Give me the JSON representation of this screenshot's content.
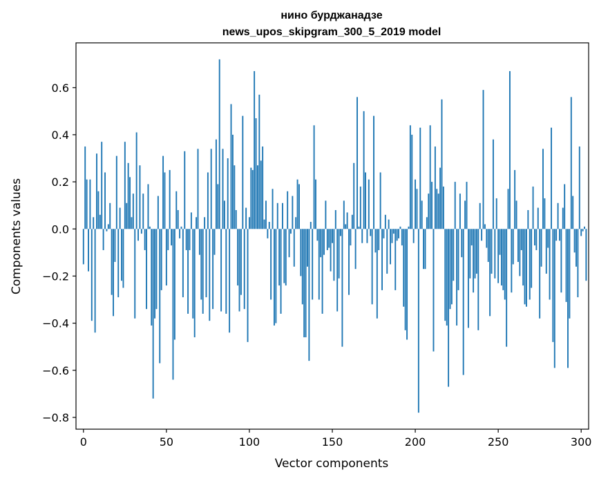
{
  "chart_data": {
    "type": "bar",
    "title": "нино бурджанадзе",
    "subtitle": "news_upos_skipgram_300_5_2019 model",
    "xlabel": "Vector components",
    "ylabel": "Components values",
    "xlim": [
      -4.5,
      304.5
    ],
    "ylim": [
      -0.85,
      0.79
    ],
    "xticks": [
      0,
      50,
      100,
      150,
      200,
      250,
      300
    ],
    "xtick_labels": [
      "0",
      "50",
      "100",
      "150",
      "200",
      "250",
      "300"
    ],
    "yticks": [
      0.6,
      0.4,
      0.2,
      0.0,
      -0.2,
      -0.4,
      -0.6,
      -0.8
    ],
    "ytick_labels": [
      "0.6",
      "0.4",
      "0.2",
      "0.0",
      "−0.2",
      "−0.4",
      "−0.6",
      "−0.8"
    ],
    "color": "#1f77b4",
    "grid": false,
    "values": [
      -0.15,
      0.35,
      0.21,
      -0.18,
      0.21,
      -0.39,
      0.05,
      -0.44,
      0.32,
      0.16,
      0.06,
      0.37,
      -0.09,
      0.24,
      -0.01,
      0.02,
      0.11,
      -0.28,
      -0.37,
      -0.14,
      0.31,
      -0.29,
      0.09,
      -0.22,
      -0.25,
      0.37,
      0.11,
      0.28,
      0.22,
      0.05,
      0.15,
      -0.38,
      0.41,
      -0.05,
      0.27,
      -0.02,
      0.15,
      -0.09,
      -0.34,
      0.19,
      0.01,
      -0.41,
      -0.72,
      -0.38,
      -0.34,
      0.14,
      -0.57,
      -0.26,
      0.31,
      0.24,
      -0.24,
      -0.09,
      0.25,
      -0.07,
      -0.64,
      -0.47,
      0.16,
      0.08,
      -0.04,
      0.01,
      -0.29,
      0.33,
      -0.09,
      -0.36,
      -0.09,
      0.07,
      -0.38,
      -0.46,
      0.05,
      0.34,
      -0.11,
      -0.3,
      -0.36,
      0.05,
      -0.29,
      0.24,
      -0.39,
      0.34,
      -0.34,
      -0.11,
      0.38,
      0.19,
      0.72,
      -0.35,
      0.34,
      0.12,
      -0.36,
      0.3,
      -0.44,
      0.53,
      0.4,
      0.27,
      0.08,
      -0.24,
      -0.35,
      -0.28,
      0.48,
      -0.34,
      0.09,
      -0.48,
      0.05,
      0.26,
      0.25,
      0.67,
      0.47,
      0.27,
      0.57,
      0.29,
      0.35,
      0.04,
      0.12,
      -0.04,
      0.03,
      -0.3,
      0.17,
      -0.41,
      -0.4,
      0.11,
      -0.24,
      -0.36,
      0.11,
      -0.23,
      -0.24,
      0.16,
      -0.12,
      -0.02,
      0.14,
      -0.16,
      0.05,
      0.21,
      0.19,
      -0.2,
      -0.32,
      -0.46,
      -0.46,
      -0.16,
      -0.56,
      0.03,
      -0.3,
      0.44,
      0.21,
      -0.05,
      -0.3,
      -0.12,
      -0.36,
      -0.11,
      0.12,
      -0.09,
      -0.08,
      -0.18,
      -0.06,
      -0.22,
      0.08,
      -0.35,
      -0.21,
      -0.03,
      -0.5,
      0.12,
      0.02,
      0.07,
      -0.28,
      -0.07,
      0.06,
      0.28,
      -0.17,
      0.56,
      0.01,
      0.18,
      -0.06,
      0.5,
      0.24,
      -0.06,
      0.21,
      -0.03,
      -0.32,
      0.48,
      -0.1,
      -0.38,
      -0.09,
      0.24,
      -0.26,
      -0.04,
      0.06,
      -0.19,
      0.04,
      -0.15,
      -0.06,
      -0.02,
      -0.26,
      -0.05,
      -0.04,
      0.01,
      -0.07,
      -0.33,
      -0.43,
      -0.47,
      0.01,
      0.44,
      0.4,
      -0.06,
      0.21,
      0.17,
      -0.78,
      0.43,
      0.12,
      -0.17,
      -0.17,
      0.05,
      0.15,
      0.44,
      0.2,
      -0.52,
      0.35,
      0.17,
      0.15,
      0.26,
      0.55,
      0.18,
      -0.39,
      -0.41,
      -0.67,
      -0.34,
      -0.32,
      -0.22,
      0.2,
      -0.41,
      -0.26,
      0.15,
      -0.12,
      -0.62,
      0.12,
      0.2,
      -0.42,
      -0.21,
      -0.07,
      -0.27,
      -0.21,
      -0.19,
      -0.43,
      0.11,
      -0.05,
      0.59,
      0.02,
      -0.08,
      -0.14,
      -0.37,
      -0.19,
      0.38,
      -0.21,
      0.13,
      -0.23,
      -0.11,
      -0.24,
      -0.26,
      -0.3,
      -0.5,
      0.17,
      0.67,
      -0.27,
      -0.15,
      0.25,
      0.12,
      -0.14,
      -0.2,
      -0.09,
      -0.24,
      -0.32,
      -0.33,
      0.08,
      -0.3,
      -0.25,
      0.18,
      -0.07,
      -0.09,
      0.09,
      -0.38,
      -0.16,
      0.34,
      0.13,
      -0.19,
      -0.08,
      -0.3,
      0.43,
      -0.48,
      -0.59,
      -0.05,
      0.11,
      -0.05,
      -0.27,
      0.09,
      0.19,
      -0.31,
      -0.59,
      -0.38,
      0.56,
      0.14,
      -0.1,
      -0.16,
      -0.29,
      0.35,
      -0.03,
      -0.01,
      0.01,
      -0.22
    ]
  }
}
